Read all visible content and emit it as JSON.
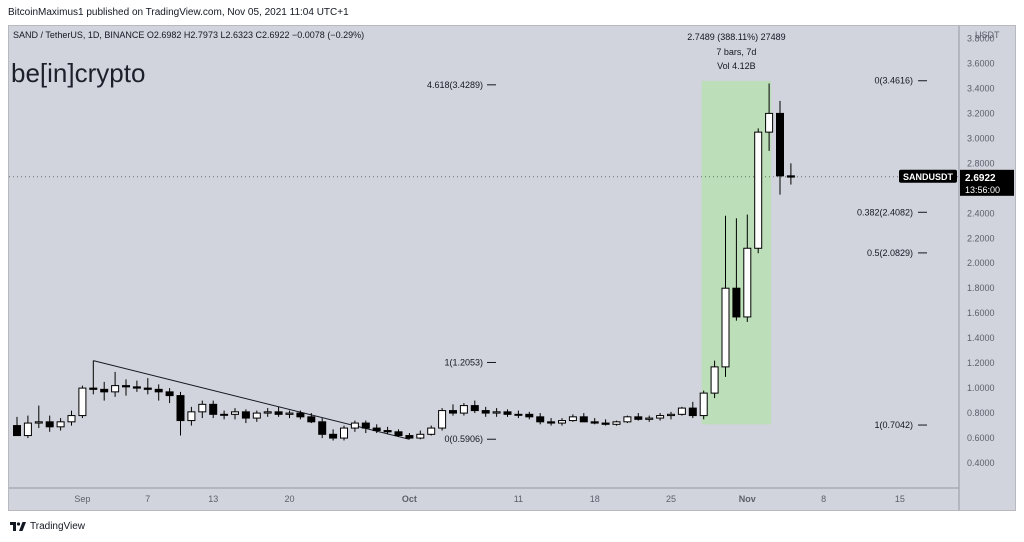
{
  "header": {
    "published_line": "BitcoinMaximus1 published on TradingView.com, Nov 05, 2021 11:04 UTC+1"
  },
  "footer": {
    "brand": "TradingView"
  },
  "watermark": {
    "brand_text": "be[in]crypto"
  },
  "colors": {
    "plot_bg": "#d1d4dc",
    "candle_up": "#ffffff",
    "candle_down": "#000000",
    "wick": "#000000",
    "range_box": "#b9dfb4",
    "price_badge": "#000000"
  },
  "chart_data": {
    "type": "candlestick",
    "symbol_line": {
      "pair": "SAND / TetherUS, 1D, BINANCE",
      "o_label": "O",
      "o_value": "2.6982",
      "h_label": "H",
      "h_value": "2.7973",
      "l_label": "L",
      "l_value": "2.6323",
      "c_label": "C",
      "c_value": "2.6922",
      "change": "−0.0078 (−0.29%)"
    },
    "y_axis": {
      "currency": "USDT",
      "range": [
        0.2,
        3.9
      ],
      "ticks": [
        "3.8000",
        "3.6000",
        "3.4000",
        "3.2000",
        "3.0000",
        "2.8000",
        "2.6000",
        "2.4000",
        "2.2000",
        "2.0000",
        "1.8000",
        "1.6000",
        "1.4000",
        "1.2000",
        "1.0000",
        "0.8000",
        "0.6000",
        "0.4000"
      ],
      "tick_values": [
        3.8,
        3.6,
        3.4,
        3.2,
        3.0,
        2.8,
        2.6,
        2.4,
        2.2,
        2.0,
        1.8,
        1.6,
        1.4,
        1.2,
        1.0,
        0.8,
        0.6,
        0.4
      ]
    },
    "x_axis": {
      "ticks": [
        {
          "label": "Sep",
          "day": 6,
          "bold": false
        },
        {
          "label": "7",
          "day": 12,
          "bold": false
        },
        {
          "label": "13",
          "day": 18,
          "bold": false
        },
        {
          "label": "20",
          "day": 25,
          "bold": false
        },
        {
          "label": "Oct",
          "day": 36,
          "bold": true
        },
        {
          "label": "11",
          "day": 46,
          "bold": false
        },
        {
          "label": "18",
          "day": 53,
          "bold": false
        },
        {
          "label": "25",
          "day": 60,
          "bold": false
        },
        {
          "label": "Nov",
          "day": 67,
          "bold": true
        },
        {
          "label": "8",
          "day": 74,
          "bold": false
        },
        {
          "label": "15",
          "day": 81,
          "bold": false
        }
      ]
    },
    "candles": [
      [
        0.7,
        0.77,
        0.62,
        0.62
      ],
      [
        0.62,
        0.78,
        0.6,
        0.72
      ],
      [
        0.72,
        0.86,
        0.68,
        0.73
      ],
      [
        0.73,
        0.78,
        0.65,
        0.69
      ],
      [
        0.69,
        0.76,
        0.66,
        0.73
      ],
      [
        0.73,
        0.82,
        0.7,
        0.78
      ],
      [
        0.78,
        1.02,
        0.76,
        1.0
      ],
      [
        1.0,
        1.22,
        0.95,
        0.99
      ],
      [
        0.99,
        1.05,
        0.9,
        0.97
      ],
      [
        0.97,
        1.13,
        0.93,
        1.02
      ],
      [
        1.02,
        1.07,
        0.94,
        1.01
      ],
      [
        1.01,
        1.06,
        0.97,
        1.0
      ],
      [
        1.0,
        1.08,
        0.95,
        0.99
      ],
      [
        0.99,
        1.03,
        0.9,
        0.97
      ],
      [
        0.97,
        1.0,
        0.88,
        0.94
      ],
      [
        0.94,
        0.97,
        0.62,
        0.74
      ],
      [
        0.74,
        0.85,
        0.7,
        0.81
      ],
      [
        0.81,
        0.9,
        0.76,
        0.87
      ],
      [
        0.87,
        0.9,
        0.76,
        0.79
      ],
      [
        0.79,
        0.82,
        0.75,
        0.79
      ],
      [
        0.79,
        0.84,
        0.75,
        0.81
      ],
      [
        0.81,
        0.83,
        0.72,
        0.76
      ],
      [
        0.76,
        0.82,
        0.73,
        0.8
      ],
      [
        0.8,
        0.84,
        0.77,
        0.81
      ],
      [
        0.81,
        0.85,
        0.77,
        0.79
      ],
      [
        0.79,
        0.82,
        0.76,
        0.8
      ],
      [
        0.8,
        0.82,
        0.75,
        0.77
      ],
      [
        0.77,
        0.8,
        0.72,
        0.73
      ],
      [
        0.73,
        0.76,
        0.6,
        0.63
      ],
      [
        0.63,
        0.67,
        0.58,
        0.6
      ],
      [
        0.6,
        0.7,
        0.58,
        0.68
      ],
      [
        0.68,
        0.74,
        0.65,
        0.72
      ],
      [
        0.72,
        0.74,
        0.64,
        0.68
      ],
      [
        0.68,
        0.71,
        0.64,
        0.66
      ],
      [
        0.66,
        0.69,
        0.63,
        0.65
      ],
      [
        0.65,
        0.67,
        0.61,
        0.62
      ],
      [
        0.62,
        0.64,
        0.59,
        0.6
      ],
      [
        0.6,
        0.66,
        0.59,
        0.63
      ],
      [
        0.63,
        0.7,
        0.62,
        0.68
      ],
      [
        0.68,
        0.84,
        0.66,
        0.82
      ],
      [
        0.82,
        0.87,
        0.78,
        0.8
      ],
      [
        0.8,
        0.88,
        0.78,
        0.86
      ],
      [
        0.86,
        0.9,
        0.8,
        0.82
      ],
      [
        0.82,
        0.85,
        0.77,
        0.8
      ],
      [
        0.8,
        0.84,
        0.77,
        0.81
      ],
      [
        0.81,
        0.83,
        0.77,
        0.79
      ],
      [
        0.79,
        0.82,
        0.76,
        0.79
      ],
      [
        0.79,
        0.81,
        0.75,
        0.77
      ],
      [
        0.77,
        0.8,
        0.71,
        0.73
      ],
      [
        0.73,
        0.76,
        0.7,
        0.72
      ],
      [
        0.72,
        0.76,
        0.7,
        0.74
      ],
      [
        0.74,
        0.79,
        0.73,
        0.77
      ],
      [
        0.77,
        0.8,
        0.73,
        0.73
      ],
      [
        0.73,
        0.76,
        0.71,
        0.72
      ],
      [
        0.72,
        0.75,
        0.7,
        0.71
      ],
      [
        0.71,
        0.74,
        0.7,
        0.73
      ],
      [
        0.73,
        0.78,
        0.72,
        0.77
      ],
      [
        0.77,
        0.8,
        0.74,
        0.75
      ],
      [
        0.75,
        0.78,
        0.73,
        0.76
      ],
      [
        0.76,
        0.8,
        0.74,
        0.78
      ],
      [
        0.78,
        0.81,
        0.75,
        0.79
      ],
      [
        0.79,
        0.85,
        0.78,
        0.84
      ],
      [
        0.84,
        0.89,
        0.76,
        0.78
      ],
      [
        0.78,
        0.98,
        0.75,
        0.96
      ],
      [
        0.96,
        1.22,
        0.92,
        1.17
      ],
      [
        1.17,
        2.38,
        1.09,
        1.8
      ],
      [
        1.8,
        2.36,
        1.54,
        1.57
      ],
      [
        1.57,
        2.39,
        1.53,
        2.12
      ],
      [
        2.12,
        3.08,
        2.08,
        3.05
      ],
      [
        3.05,
        3.44,
        2.9,
        3.2
      ],
      [
        3.2,
        3.3,
        2.55,
        2.7
      ],
      [
        2.7,
        2.8,
        2.63,
        2.69
      ]
    ],
    "trendline": {
      "from": {
        "day": 7,
        "price": 1.22
      },
      "to": {
        "day": 36,
        "price": 0.59
      }
    },
    "fib_left": [
      {
        "label": "4.618(3.4289)",
        "price": 3.4289
      },
      {
        "label": "1(1.2053)",
        "price": 1.2053
      },
      {
        "label": "0(0.5906)",
        "price": 0.5906
      }
    ],
    "fib_right": [
      {
        "label": "0(3.4616)",
        "price": 3.4616
      },
      {
        "label": "0.382(2.4082)",
        "price": 2.4082
      },
      {
        "label": "0.5(2.0829)",
        "price": 2.0829
      },
      {
        "label": "1(0.7042)",
        "price": 0.7042
      }
    ],
    "range_box": {
      "from_day": 63,
      "to_day": 69,
      "low": 0.71,
      "high": 3.46,
      "line1": "2.7489 (388.11%) 27489",
      "line2": "7 bars, 7d",
      "line3": "Vol 4.12B"
    },
    "last_price": {
      "price": 2.6922,
      "symbol": "SANDUSDT",
      "value": "2.6922",
      "countdown": "13:56:00"
    }
  }
}
